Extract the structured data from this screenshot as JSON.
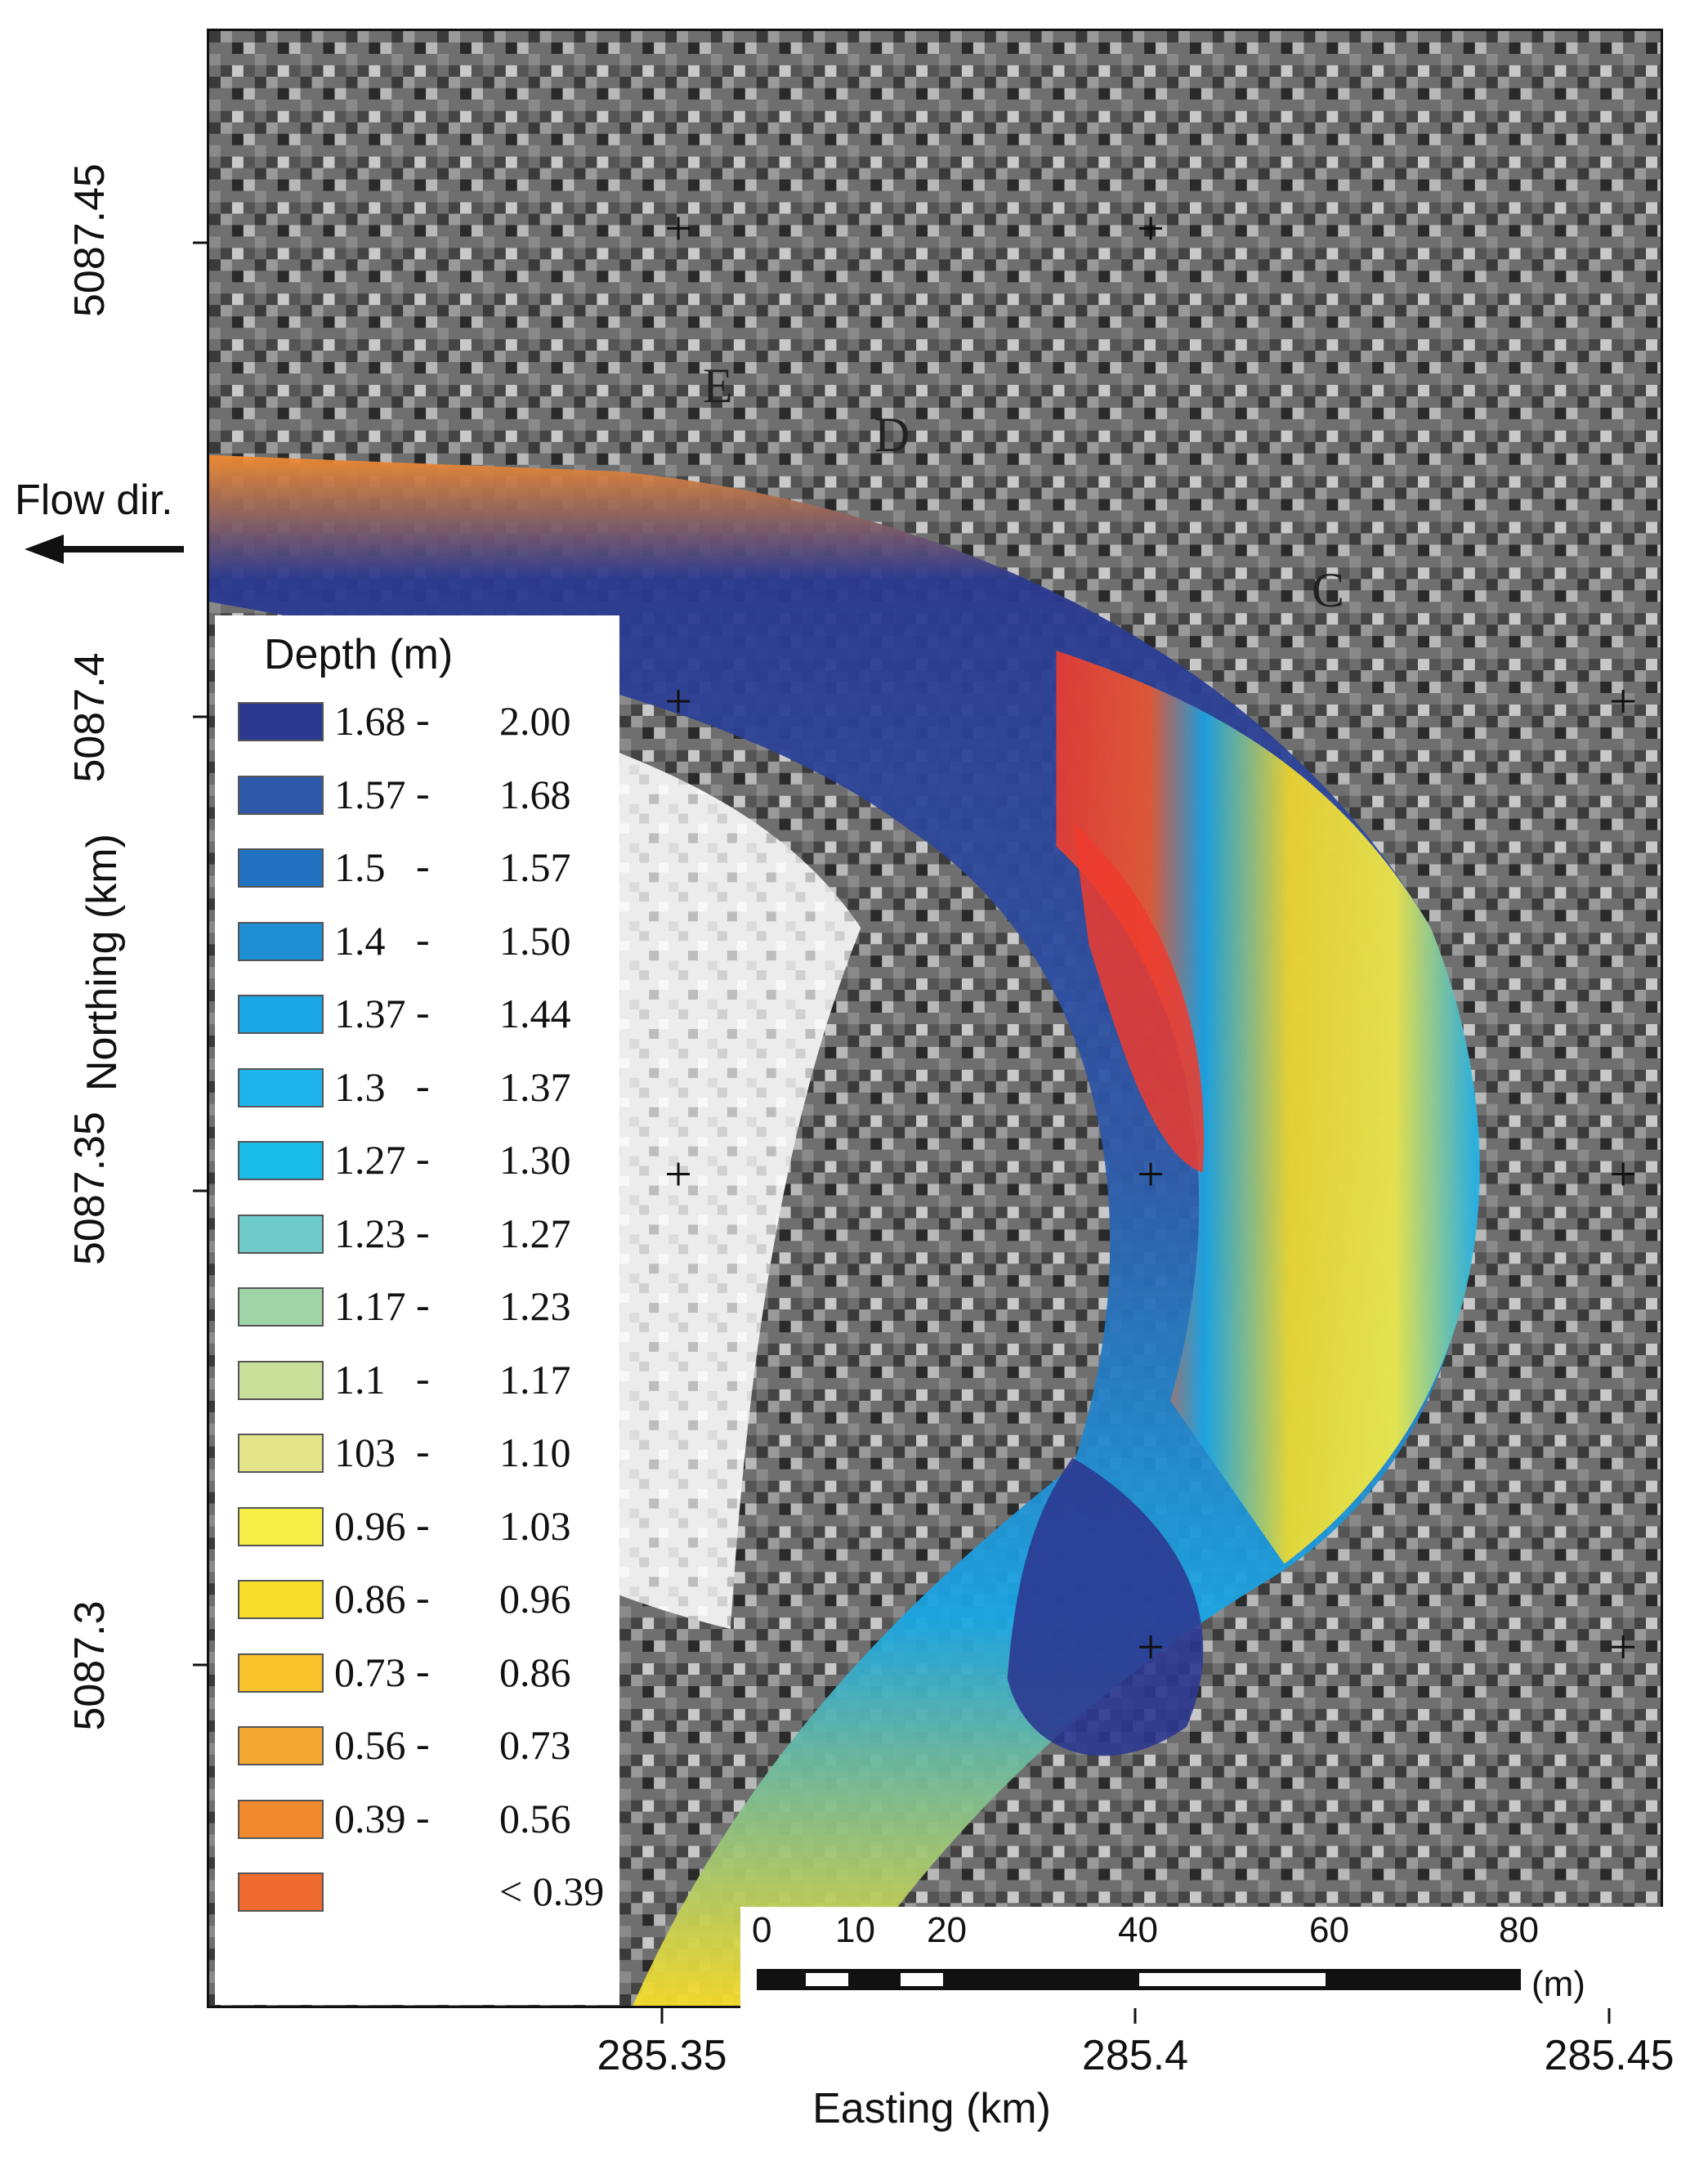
{
  "legend": {
    "title": "Depth (m)",
    "classes": [
      {
        "lo": "1.68",
        "dash": "-",
        "hi": "2.00",
        "color": "#2b3990"
      },
      {
        "lo": "1.57",
        "dash": "-",
        "hi": "1.68",
        "color": "#2e58a8"
      },
      {
        "lo": "1.5",
        "dash": "-",
        "hi": "1.57",
        "color": "#2171c0"
      },
      {
        "lo": "1.4",
        "dash": "-",
        "hi": "1.50",
        "color": "#1f8fd4"
      },
      {
        "lo": "1.37",
        "dash": "-",
        "hi": "1.44",
        "color": "#1aa6e4"
      },
      {
        "lo": "1.3",
        "dash": "-",
        "hi": "1.37",
        "color": "#20b4ec"
      },
      {
        "lo": "1.27",
        "dash": "-",
        "hi": "1.30",
        "color": "#19bbe8"
      },
      {
        "lo": "1.23",
        "dash": "-",
        "hi": "1.27",
        "color": "#6ecac9"
      },
      {
        "lo": "1.17",
        "dash": "-",
        "hi": "1.23",
        "color": "#9fd4a6"
      },
      {
        "lo": "1.1",
        "dash": "-",
        "hi": "1.17",
        "color": "#c8e09a"
      },
      {
        "lo": "103",
        "dash": "-",
        "hi": "1.10",
        "color": "#e5e48a"
      },
      {
        "lo": "0.96",
        "dash": "-",
        "hi": "1.03",
        "color": "#f7ee45"
      },
      {
        "lo": "0.86",
        "dash": "-",
        "hi": "0.96",
        "color": "#f7dc2a"
      },
      {
        "lo": "0.73",
        "dash": "-",
        "hi": "0.86",
        "color": "#f8c22a"
      },
      {
        "lo": "0.56",
        "dash": "-",
        "hi": "0.73",
        "color": "#f4a731"
      },
      {
        "lo": "0.39",
        "dash": "-",
        "hi": "0.56",
        "color": "#f18a2f"
      },
      {
        "lo": "",
        "dash": "",
        "hi": "< 0.39",
        "color": "#ee6a2e"
      }
    ]
  },
  "axes": {
    "x_label": "Easting (km)",
    "y_label": "Northing (km)",
    "x_ticks": [
      "285.35",
      "285.4",
      "285.45"
    ],
    "y_ticks": [
      "5087.45",
      "5087.4",
      "5087.35",
      "5087.3"
    ]
  },
  "flow": {
    "label": "Flow dir."
  },
  "sites": [
    "E",
    "D",
    "C"
  ],
  "scalebar": {
    "numbers": [
      "0",
      "10",
      "20",
      "40",
      "60",
      "80"
    ],
    "unit": "(m)"
  }
}
